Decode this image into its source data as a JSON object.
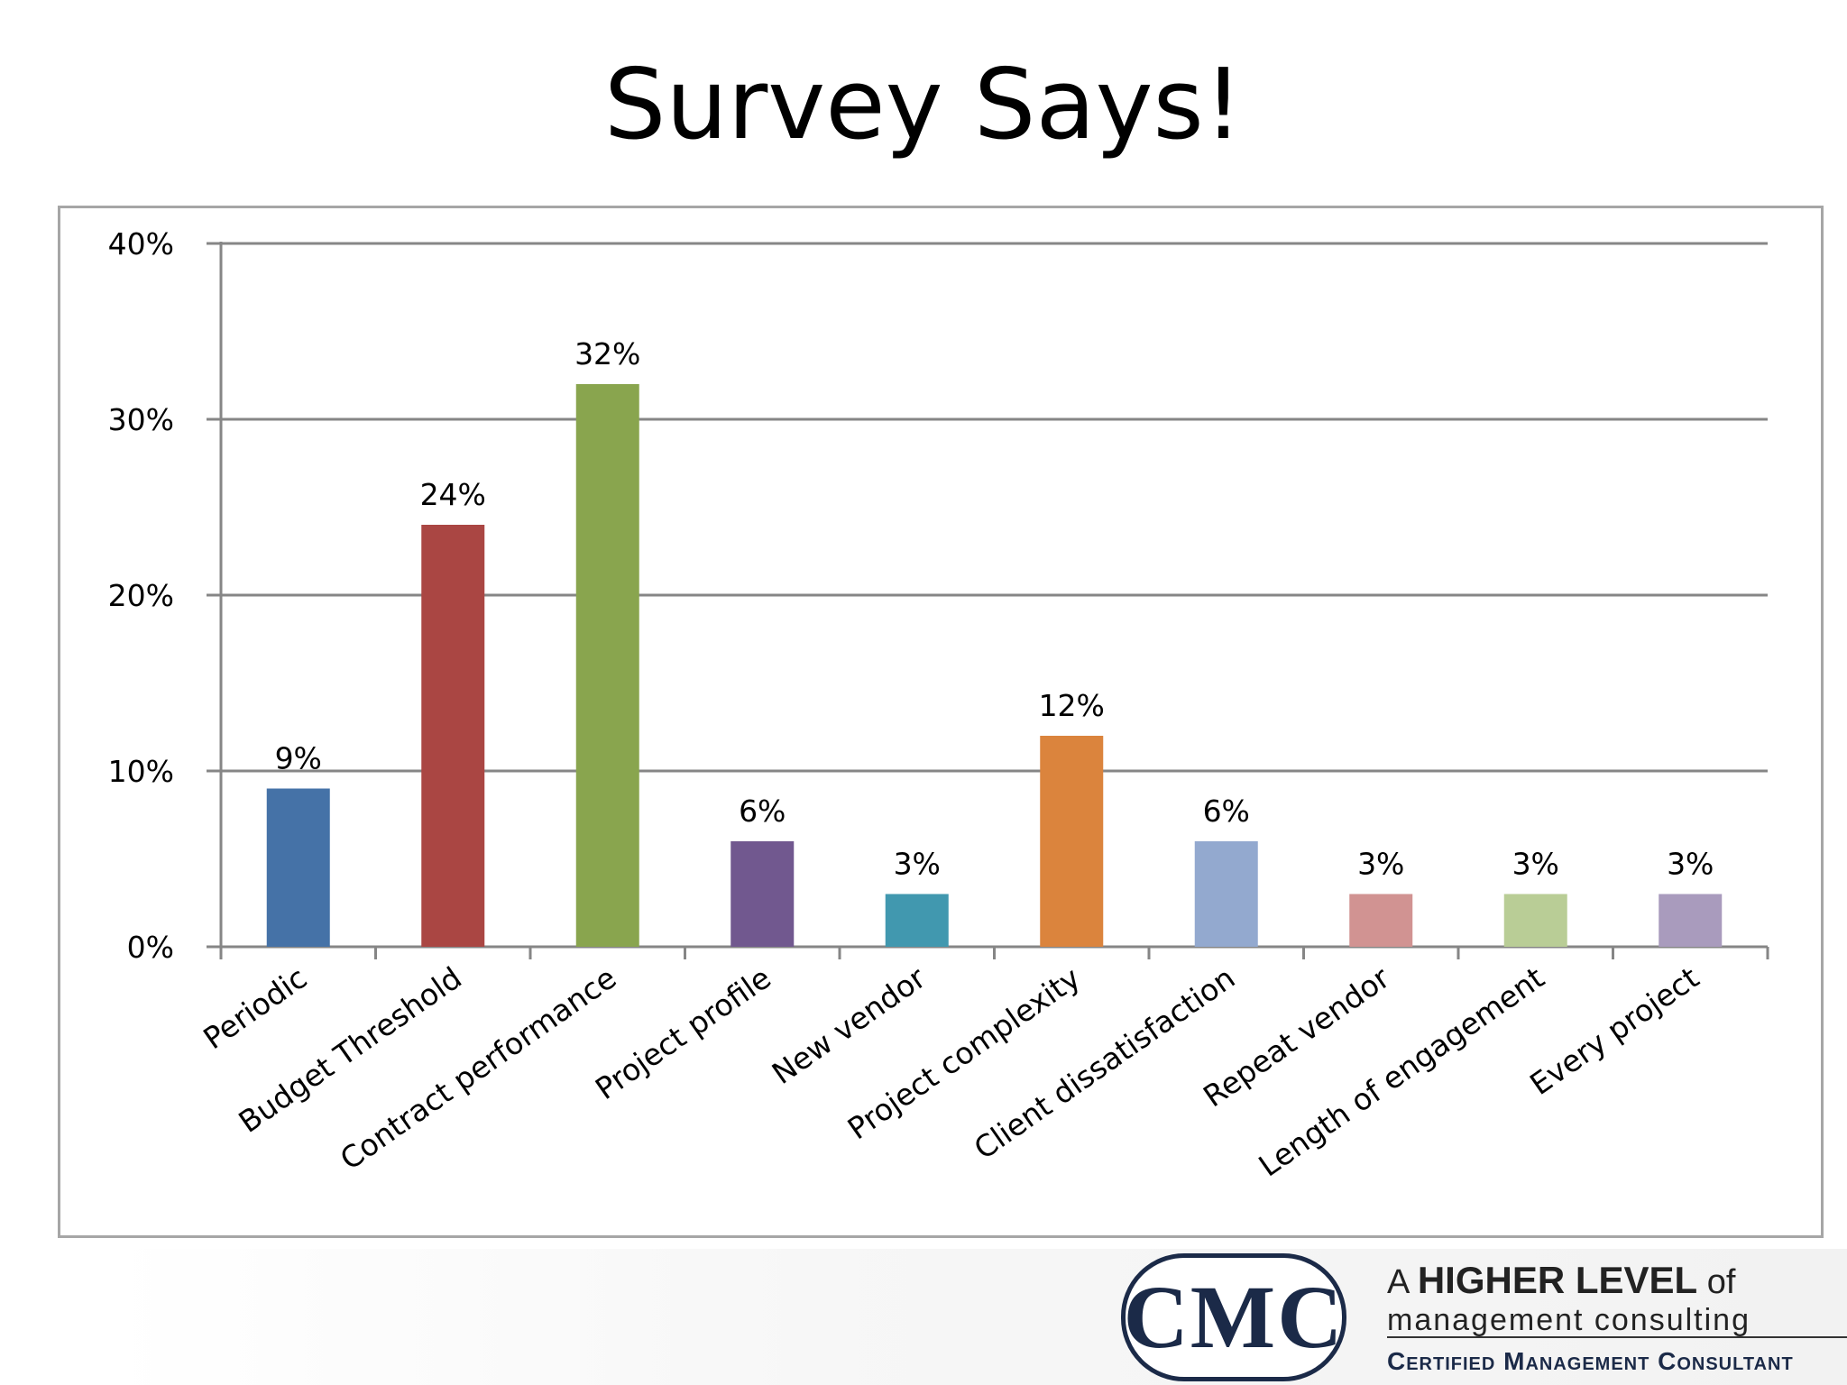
{
  "slide": {
    "title": "Survey Says!"
  },
  "chart_data": {
    "type": "bar",
    "title": "",
    "xlabel": "",
    "ylabel": "",
    "categories": [
      "Periodic",
      "Budget Threshold",
      "Contract performance",
      "Project profile",
      "New vendor",
      "Project complexity",
      "Client dissatisfaction",
      "Repeat vendor",
      "Length of engagement",
      "Every project"
    ],
    "values": [
      9,
      24,
      32,
      6,
      3,
      12,
      6,
      3,
      3,
      3
    ],
    "data_labels": [
      "9%",
      "24%",
      "32%",
      "6%",
      "3%",
      "12%",
      "6%",
      "3%",
      "3%",
      "3%"
    ],
    "colors": [
      "#4572a7",
      "#aa4643",
      "#89a54e",
      "#71588f",
      "#4198af",
      "#db843d",
      "#93a9cf",
      "#d19392",
      "#b9cd96",
      "#a99bbd"
    ],
    "ylim": [
      0,
      40
    ],
    "yticks": [
      0,
      10,
      20,
      30,
      40
    ],
    "ytick_labels": [
      "0%",
      "10%",
      "20%",
      "30%",
      "40%"
    ],
    "grid": true,
    "legend": "none"
  },
  "footer": {
    "logo_text": "CMC",
    "tagline_prefix": "A ",
    "tagline_big": "HIGHER LEVEL",
    "tagline_suffix": " of",
    "tagline_line2": "management consulting",
    "tagline_cert": "Certified Management Consultant"
  }
}
